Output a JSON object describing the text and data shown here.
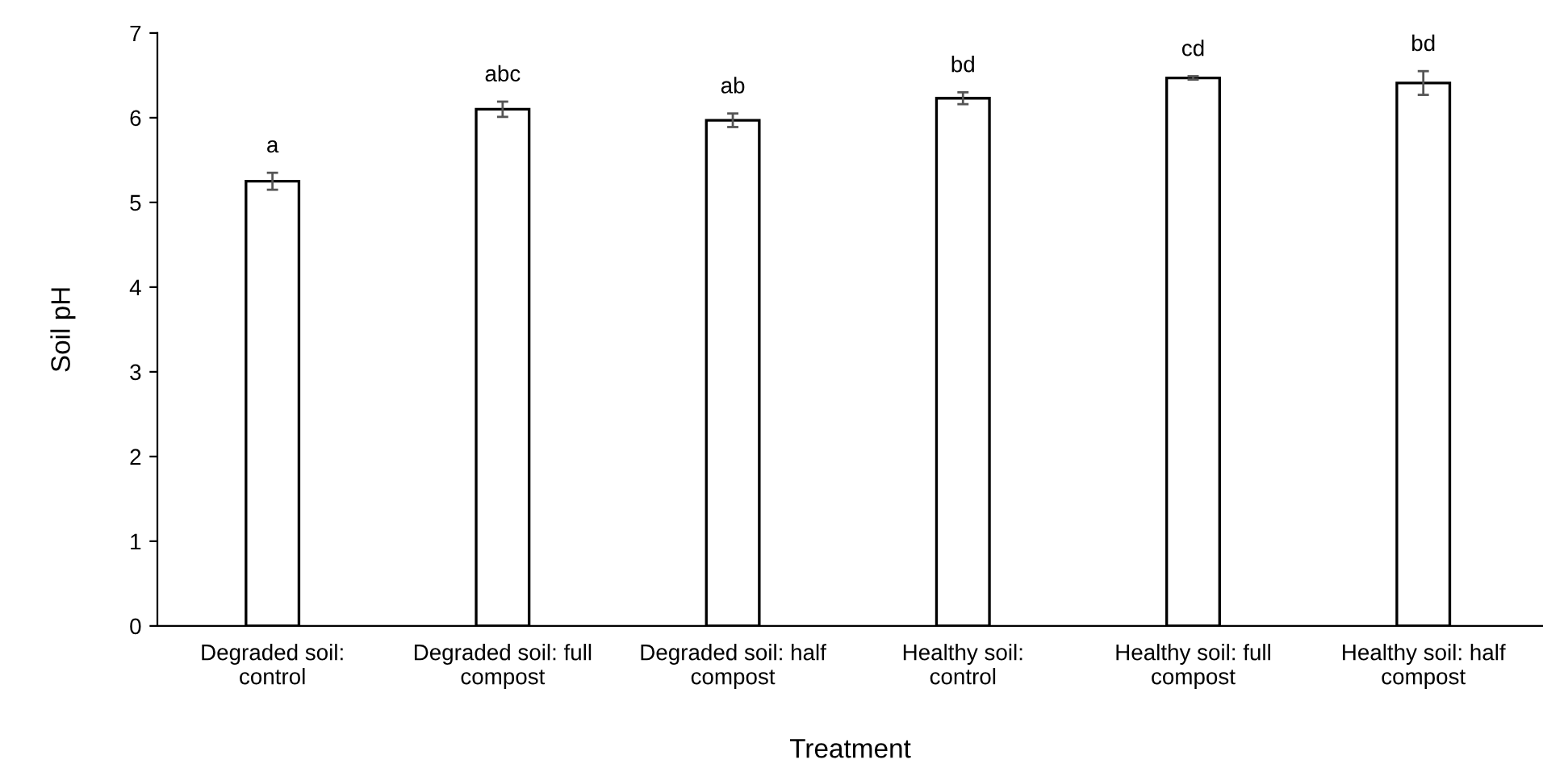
{
  "chart_data": {
    "type": "bar",
    "xlabel": "Treatment",
    "ylabel": "Soil pH",
    "categories": [
      "Degraded soil: control",
      "Degraded soil: full compost",
      "Degraded soil: half compost",
      "Healthy soil: control",
      "Healthy soil: full compost",
      "Healthy soil: half compost"
    ],
    "values": [
      5.25,
      6.1,
      5.97,
      6.23,
      6.47,
      6.41
    ],
    "errors": [
      0.1,
      0.09,
      0.08,
      0.07,
      0.02,
      0.14
    ],
    "annotations": [
      {
        "text": "a",
        "x": "Degraded soil: control",
        "y": 5.25
      },
      {
        "text": "abc",
        "x": "Degraded soil: full compost",
        "y": 6.1
      },
      {
        "text": "ab",
        "x": "Degraded soil: half compost",
        "y": 5.97
      },
      {
        "text": "bd",
        "x": "Healthy soil: control",
        "y": 6.23
      },
      {
        "text": "cd",
        "x": "Healthy soil: full compost",
        "y": 6.47
      },
      {
        "text": "bd",
        "x": "Healthy soil: half compost",
        "y": 6.41
      }
    ],
    "color": "#ffffff",
    "ylim": [
      0,
      7
    ],
    "yticks": [
      0,
      1,
      2,
      3,
      4,
      5,
      6,
      7
    ],
    "grid": false,
    "legend": false
  }
}
